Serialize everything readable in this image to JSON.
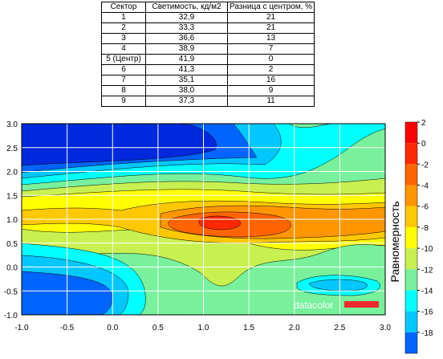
{
  "table": {
    "headers": [
      "Сектор",
      "Светимость, кд/м2",
      "Разница с центром, %"
    ],
    "rows": [
      [
        "1",
        "32,9",
        "21"
      ],
      [
        "2",
        "33,3",
        "21"
      ],
      [
        "3",
        "36,6",
        "13"
      ],
      [
        "4",
        "38,9",
        "7"
      ],
      [
        "5 (Центр)",
        "41,9",
        "0"
      ],
      [
        "6",
        "41,3",
        "2"
      ],
      [
        "7",
        "35,1",
        "16"
      ],
      [
        "8",
        "38,0",
        "9"
      ],
      [
        "9",
        "37,3",
        "11"
      ]
    ]
  },
  "chart_data": {
    "type": "heatmap",
    "subtype": "filled-contour",
    "xlim": [
      -1.0,
      3.0
    ],
    "ylim": [
      -1.0,
      3.0
    ],
    "x_ticks": [
      "-1.0",
      "-0.5",
      "0.0",
      "0.5",
      "1.0",
      "1.5",
      "2.0",
      "2.5",
      "3.0"
    ],
    "y_ticks": [
      "-1.0",
      "-0.5",
      "0.0",
      "0.5",
      "1.0",
      "1.5",
      "2.0",
      "2.5",
      "3.0"
    ],
    "grid": true,
    "colorbar": {
      "label": "Равномерность",
      "ticks": [
        "2",
        "0",
        "-2",
        "-4",
        "-6",
        "-8",
        "-10",
        "-12",
        "-14",
        "-16",
        "-18"
      ],
      "levels": [
        2,
        0,
        -2,
        -4,
        -6,
        -8,
        -10,
        -12,
        -14,
        -16,
        -18,
        -20
      ],
      "colors": [
        "#ff0000",
        "#ff2800",
        "#ff6400",
        "#ff9600",
        "#ffc800",
        "#ffff00",
        "#c8f050",
        "#78f09c",
        "#00ffff",
        "#00c8ff",
        "#0064ff",
        "#0028dc"
      ]
    },
    "extrema": {
      "max_x": 1.1,
      "max_y": 0.9,
      "min_x": -0.9,
      "min_y": 2.5
    },
    "watermark": "datacolor"
  }
}
